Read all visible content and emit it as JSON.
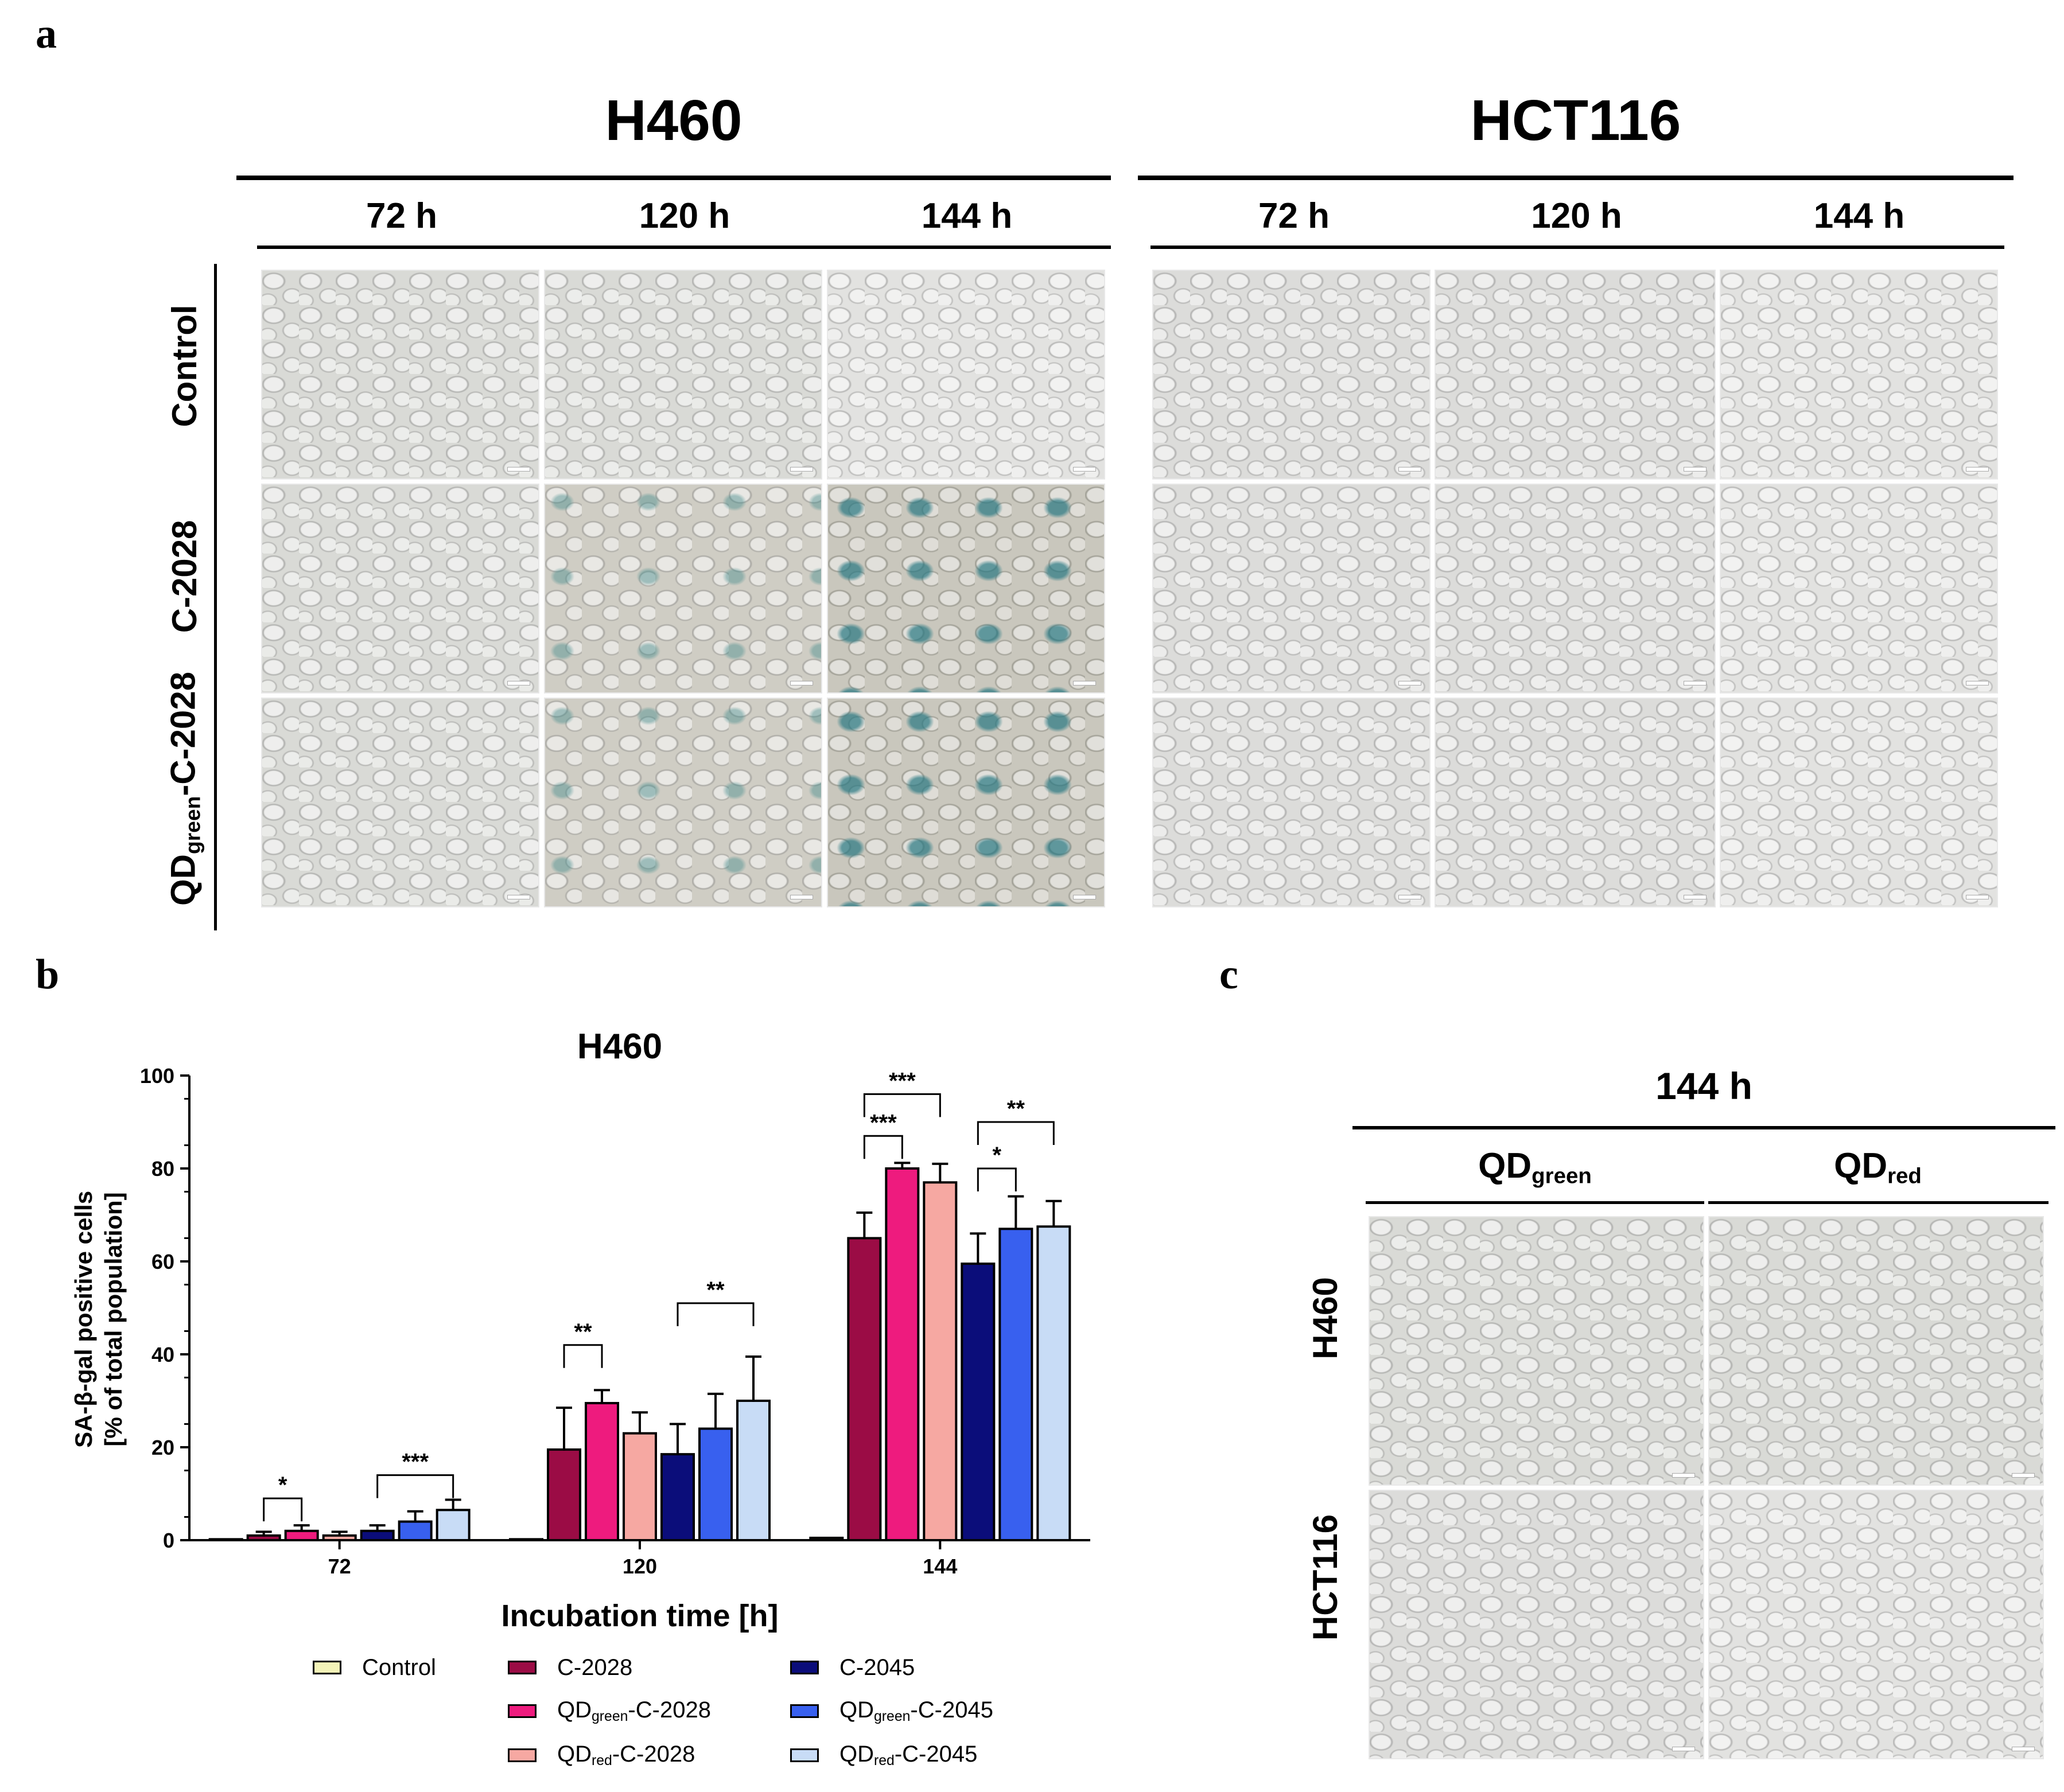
{
  "panels": {
    "a": "a",
    "b": "b",
    "c": "c"
  },
  "panel_a": {
    "groups": [
      {
        "title": "H460",
        "times": [
          "72 h",
          "120 h",
          "144 h"
        ]
      },
      {
        "title": "HCT116",
        "times": [
          "72 h",
          "120 h",
          "144 h"
        ]
      }
    ],
    "rows": [
      "Control",
      "C-2028",
      "QD",
      "green",
      "-C-2028"
    ]
  },
  "panel_c": {
    "time": "144 h",
    "columns": [
      {
        "main": "QD",
        "sub": "green"
      },
      {
        "main": "QD",
        "sub": "red"
      }
    ],
    "rows": [
      "H460",
      "HCT116"
    ]
  },
  "chart_data": {
    "type": "bar",
    "title": "H460",
    "xlabel": "Incubation time [h]",
    "ylabel_line1": "SA-β-gal positive cells",
    "ylabel_line2": "[% of total population]",
    "ylim": [
      0,
      100
    ],
    "yticks": [
      0,
      20,
      40,
      60,
      80,
      100
    ],
    "categories": [
      "72",
      "120",
      "144"
    ],
    "series": [
      {
        "name": "Control",
        "color": "#f4f4b8",
        "values": [
          0.2,
          0.2,
          0.5
        ],
        "errors": [
          0,
          0,
          0
        ]
      },
      {
        "name": "C-2028",
        "color": "#9b0c45",
        "values": [
          1,
          19.5,
          65
        ],
        "errors": [
          0.8,
          9,
          5.5
        ]
      },
      {
        "name": "QD_green-C-2028",
        "color": "#ee1b7e",
        "values": [
          2,
          29.5,
          80
        ],
        "errors": [
          1.2,
          2.8,
          1.2
        ]
      },
      {
        "name": "QD_red-C-2028",
        "color": "#f6a8a2",
        "values": [
          1,
          23,
          77
        ],
        "errors": [
          0.8,
          4.5,
          4
        ]
      },
      {
        "name": "C-2045",
        "color": "#0b0d7a",
        "values": [
          2,
          18.5,
          59.5
        ],
        "errors": [
          1.2,
          6.5,
          6.5
        ]
      },
      {
        "name": "QD_green-C-2045",
        "color": "#3860ef",
        "values": [
          4,
          24,
          67
        ],
        "errors": [
          2.2,
          7.5,
          7
        ]
      },
      {
        "name": "QD_red-C-2045",
        "color": "#c8dcf6",
        "values": [
          6.5,
          30,
          67.5
        ],
        "errors": [
          2.2,
          9.5,
          5.5
        ]
      }
    ],
    "significance": [
      {
        "label": "*",
        "category": "72",
        "from": "C-2028",
        "to": "QD_green-C-2028",
        "level": 9
      },
      {
        "label": "***",
        "category": "72",
        "from": "C-2045",
        "to": "QD_red-C-2045",
        "level": 14
      },
      {
        "label": "**",
        "category": "120",
        "from": "C-2028",
        "to": "QD_green-C-2028",
        "level": 42
      },
      {
        "label": "**",
        "category": "120",
        "from": "C-2045",
        "to": "QD_red-C-2045",
        "level": 51
      },
      {
        "label": "***",
        "category": "144",
        "from": "C-2028",
        "to": "QD_green-C-2028",
        "level": 87
      },
      {
        "label": "***",
        "category": "144",
        "from": "C-2028",
        "to": "QD_red-C-2028",
        "level": 96
      },
      {
        "label": "*",
        "category": "144",
        "from": "C-2045",
        "to": "QD_green-C-2045",
        "level": 80
      },
      {
        "label": "**",
        "category": "144",
        "from": "C-2045",
        "to": "QD_red-C-2045",
        "level": 90
      }
    ],
    "legend": [
      {
        "main": "Control",
        "sub": "",
        "rest": ""
      },
      {
        "main": "C-2028",
        "sub": "",
        "rest": ""
      },
      {
        "main": "QD",
        "sub": "green",
        "rest": "-C-2028"
      },
      {
        "main": "QD",
        "sub": "red",
        "rest": "-C-2028"
      },
      {
        "main": "C-2045",
        "sub": "",
        "rest": ""
      },
      {
        "main": "QD",
        "sub": "green",
        "rest": "-C-2045"
      },
      {
        "main": "QD",
        "sub": "red",
        "rest": "-C-2045"
      }
    ]
  }
}
